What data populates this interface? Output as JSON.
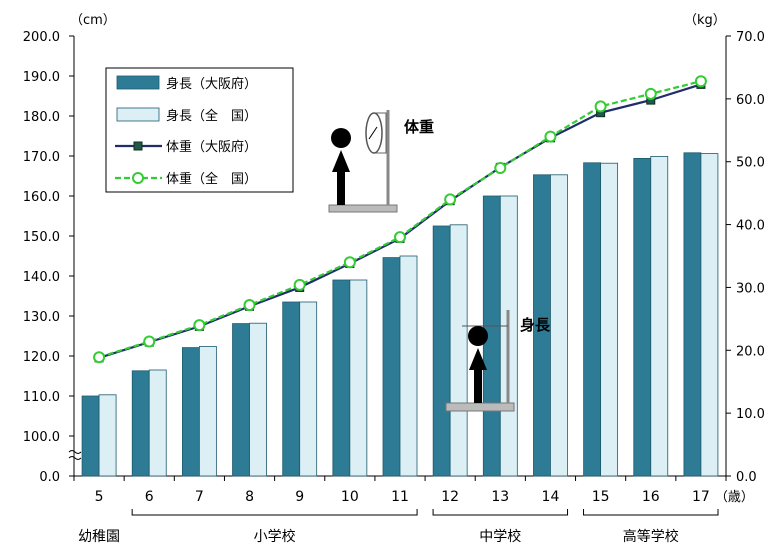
{
  "chart_data": {
    "type": "bar+line",
    "categories": [
      "5",
      "6",
      "7",
      "8",
      "9",
      "10",
      "11",
      "12",
      "13",
      "14",
      "15",
      "16",
      "17"
    ],
    "x_unit_label": "（歳）",
    "left_axis": {
      "unit_label": "（cm）",
      "ticks": [
        "0.0",
        "100.0",
        "110.0",
        "120.0",
        "130.0",
        "140.0",
        "150.0",
        "160.0",
        "170.0",
        "180.0",
        "190.0",
        "200.0"
      ],
      "break": true
    },
    "right_axis": {
      "unit_label": "（kg）",
      "ticks": [
        "0.0",
        "10.0",
        "20.0",
        "30.0",
        "40.0",
        "50.0",
        "60.0",
        "70.0"
      ],
      "ylim": [
        0,
        70
      ]
    },
    "series": [
      {
        "name": "身長（大阪府）",
        "type": "bar",
        "axis": "left",
        "color": "#2e7b95",
        "values": [
          110.0,
          116.3,
          122.1,
          128.1,
          133.5,
          139.0,
          144.6,
          152.5,
          160.0,
          165.3,
          168.3,
          169.4,
          170.8
        ]
      },
      {
        "name": "身長（全　国）",
        "type": "bar",
        "axis": "left",
        "color": "#dbeff5",
        "values": [
          110.3,
          116.5,
          122.4,
          128.2,
          133.5,
          139.0,
          145.0,
          152.8,
          160.0,
          165.3,
          168.2,
          169.9,
          170.6
        ]
      },
      {
        "name": "体重（大阪府）",
        "type": "line",
        "axis": "right",
        "color": "#1f2d6b",
        "values": [
          18.8,
          21.3,
          23.8,
          27.0,
          30.0,
          33.8,
          37.8,
          43.8,
          49.1,
          53.8,
          57.8,
          59.8,
          62.3
        ]
      },
      {
        "name": "体重（全　国）",
        "type": "line",
        "axis": "right",
        "color": "#33cc33",
        "values": [
          18.9,
          21.4,
          24.0,
          27.2,
          30.4,
          34.0,
          38.0,
          44.0,
          49.0,
          54.0,
          58.8,
          60.8,
          62.8
        ]
      }
    ],
    "legend_position": "top-left",
    "groups": [
      {
        "label": "幼稚園",
        "from": 0,
        "to": 0
      },
      {
        "label": "小学校",
        "from": 1,
        "to": 6
      },
      {
        "label": "中学校",
        "from": 7,
        "to": 9
      },
      {
        "label": "高等学校",
        "from": 10,
        "to": 12
      }
    ],
    "annotations": {
      "weight_label": "体重",
      "height_label": "身長"
    }
  }
}
